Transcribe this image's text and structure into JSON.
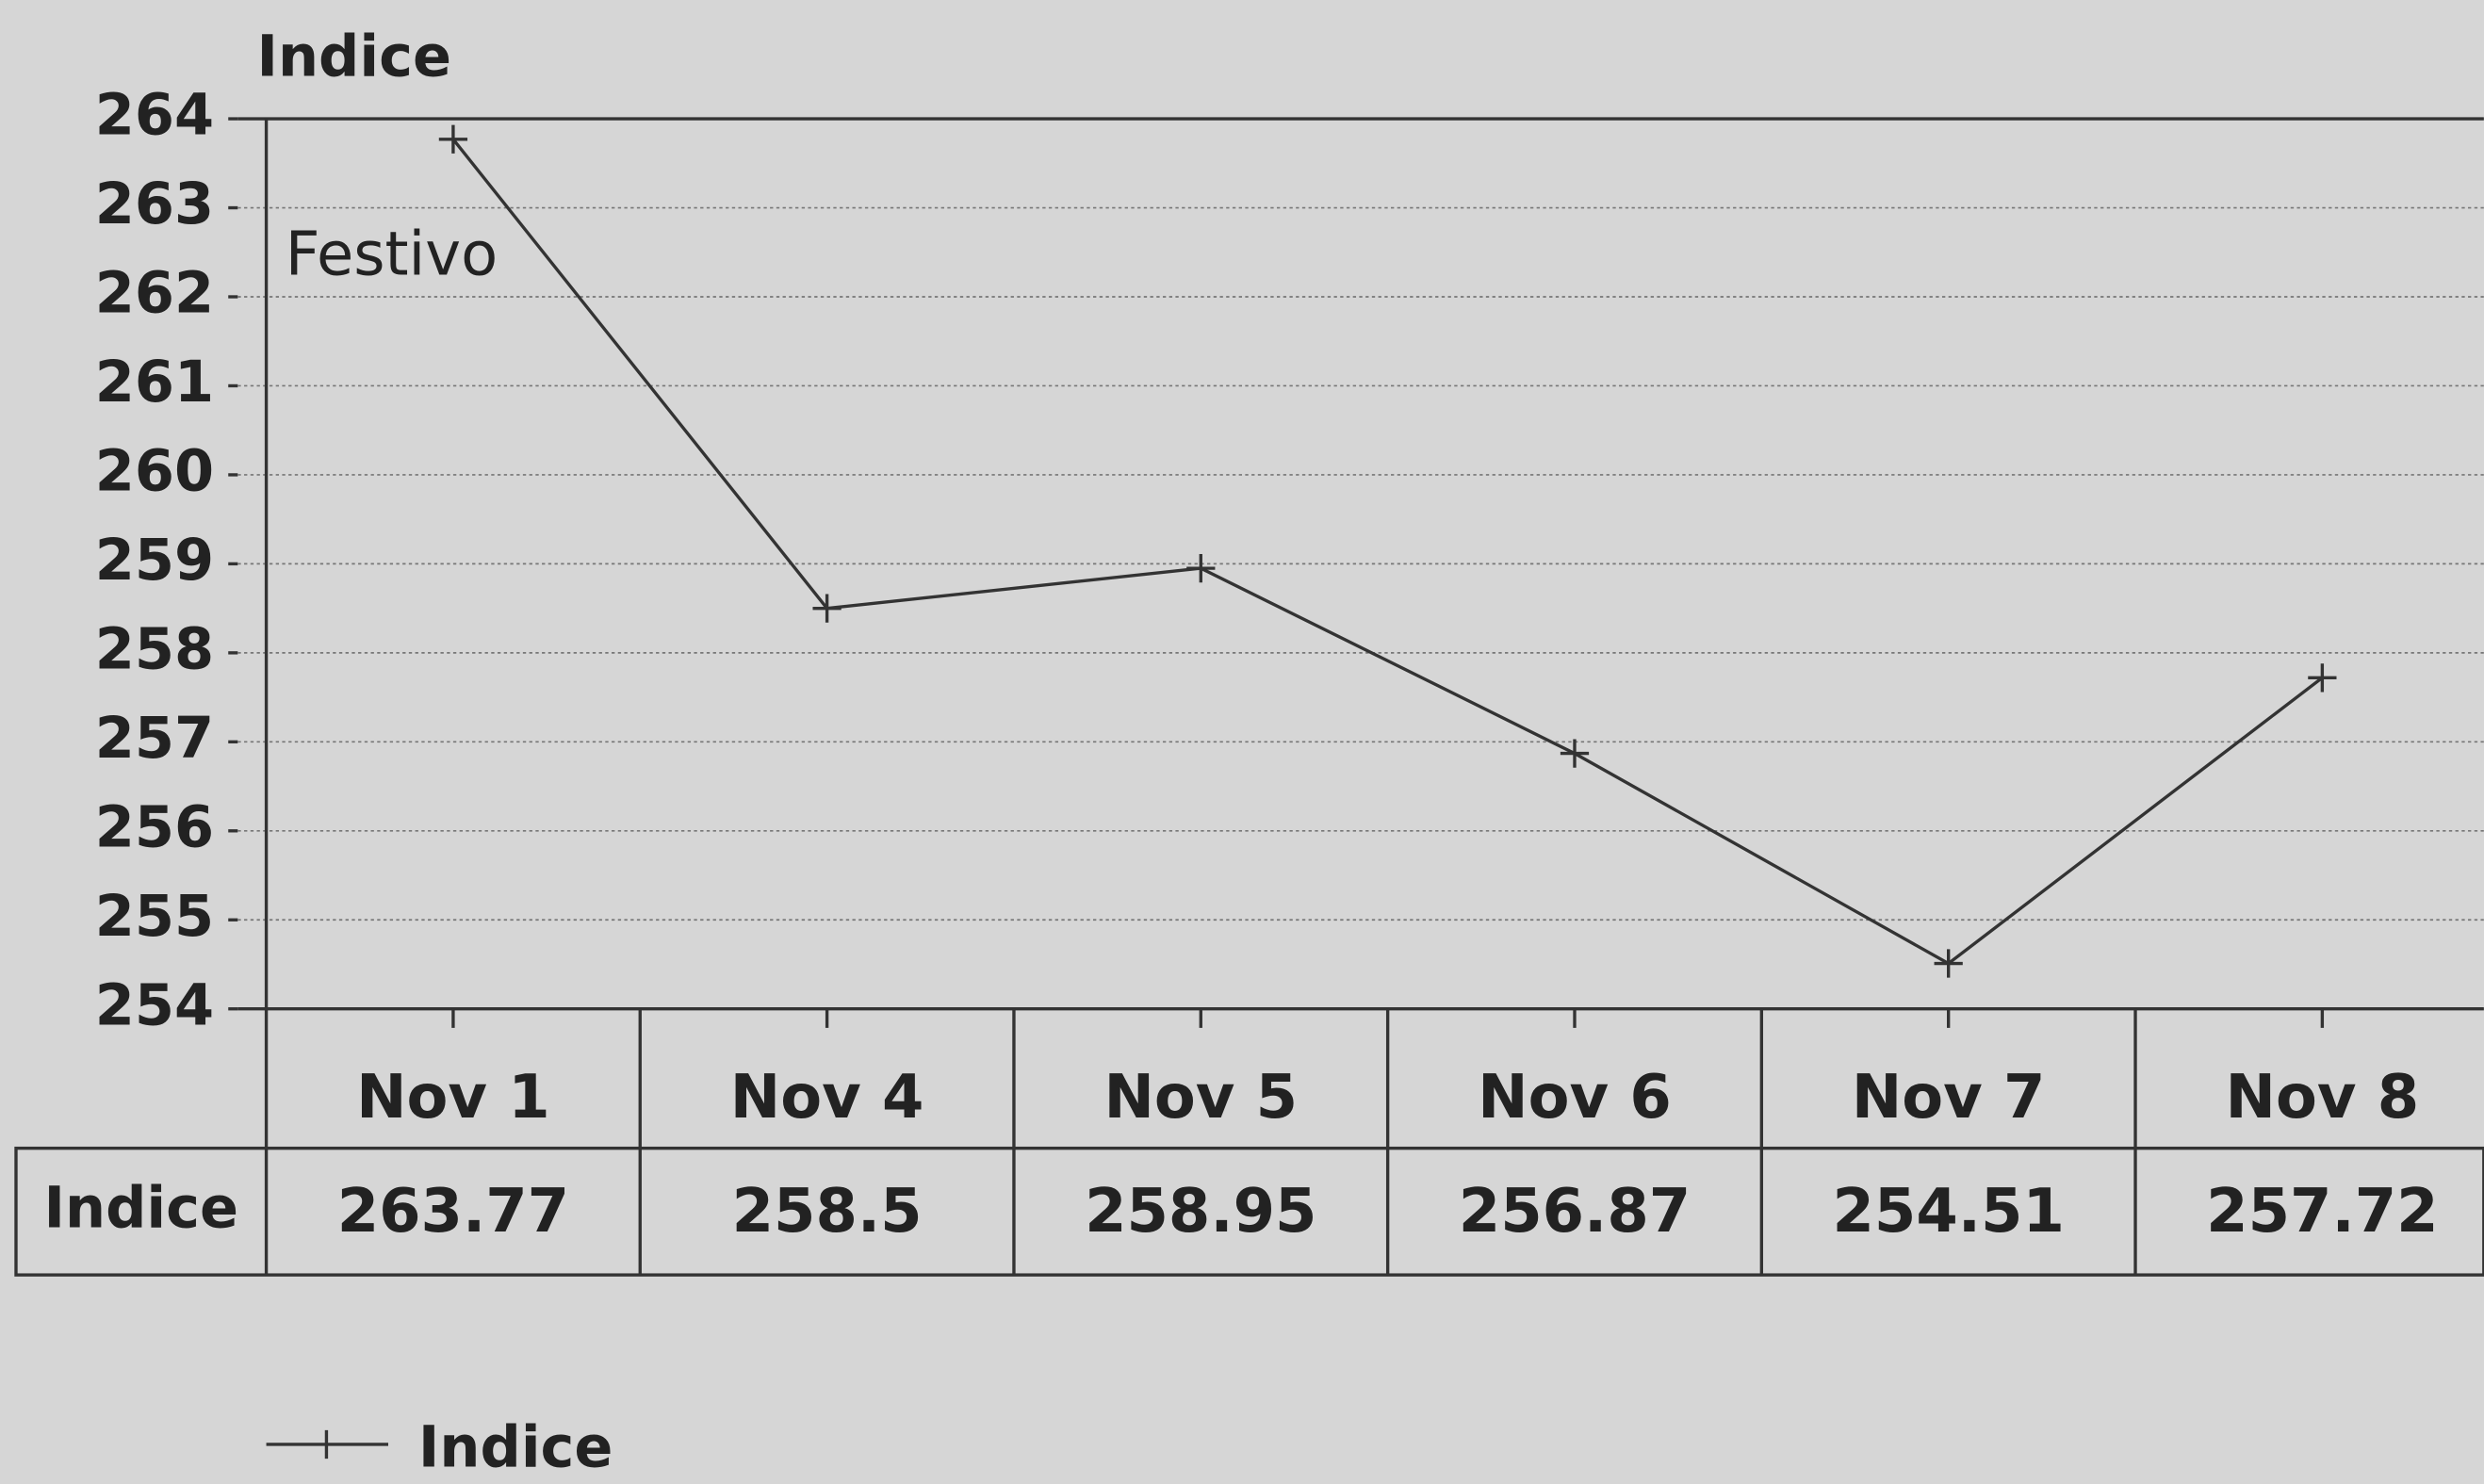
{
  "chart_data": {
    "type": "line",
    "y_label": "Indice",
    "annotation": "Festivo",
    "categories": [
      "Nov 1",
      "Nov 4",
      "Nov 5",
      "Nov 6",
      "Nov 7",
      "Nov 8"
    ],
    "series": [
      {
        "name": "Indice",
        "color": "#333333",
        "values": [
          263.77,
          258.5,
          258.95,
          256.87,
          254.51,
          257.72
        ]
      }
    ],
    "ylim": [
      254,
      264
    ],
    "yticks": [
      254,
      255,
      256,
      257,
      258,
      259,
      260,
      261,
      262,
      263,
      264
    ],
    "grid": true,
    "legend": "bottom-left"
  }
}
